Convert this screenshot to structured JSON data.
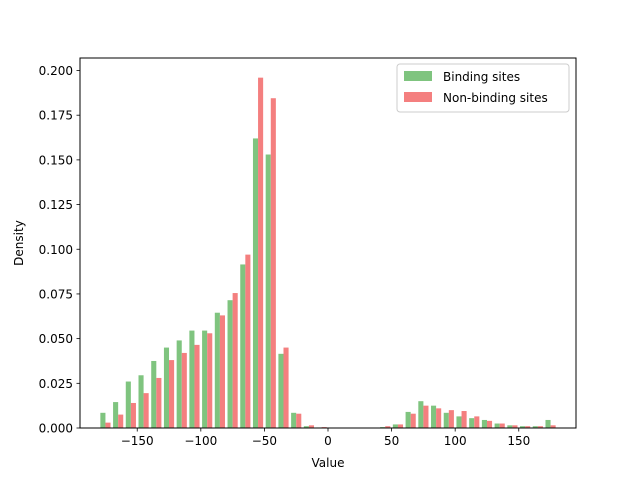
{
  "chart_data": {
    "type": "bar",
    "xlabel": "Value",
    "ylabel": "Density",
    "xlim": [
      -195,
      195
    ],
    "ylim": [
      0,
      0.207
    ],
    "x_ticks": [
      -150,
      -100,
      -50,
      0,
      50,
      100,
      150
    ],
    "x_tick_labels": [
      "−150",
      "−100",
      "−50",
      "0",
      "50",
      "100",
      "150"
    ],
    "y_ticks": [
      0,
      0.025,
      0.05,
      0.075,
      0.1,
      0.125,
      0.15,
      0.175,
      0.2
    ],
    "y_tick_labels": [
      "0.000",
      "0.025",
      "0.050",
      "0.075",
      "0.100",
      "0.125",
      "0.150",
      "0.175",
      "0.200"
    ],
    "grid": false,
    "legend_position": "top-right",
    "bin_width": 10,
    "bin_centers": [
      -175,
      -165,
      -155,
      -145,
      -135,
      -125,
      -115,
      -105,
      -95,
      -85,
      -75,
      -65,
      -55,
      -45,
      -35,
      -25,
      -15,
      -5,
      5,
      15,
      25,
      35,
      45,
      55,
      65,
      75,
      85,
      95,
      105,
      115,
      125,
      135,
      145,
      155,
      165,
      175
    ],
    "series": [
      {
        "name": "Binding sites",
        "color": "#7fc47f",
        "values": [
          0.0085,
          0.0145,
          0.026,
          0.0295,
          0.0375,
          0.045,
          0.049,
          0.0545,
          0.0545,
          0.0645,
          0.0715,
          0.0915,
          0.162,
          0.153,
          0.0415,
          0.0085,
          0.001,
          0.0003,
          0,
          0,
          0,
          0,
          0.0005,
          0.002,
          0.009,
          0.015,
          0.0125,
          0.0085,
          0.0065,
          0.0055,
          0.0045,
          0.0025,
          0.0015,
          0.001,
          0.001,
          0.0045
        ]
      },
      {
        "name": "Non-binding sites",
        "color": "#f47f7f",
        "values": [
          0.003,
          0.0075,
          0.014,
          0.0195,
          0.028,
          0.038,
          0.042,
          0.0465,
          0.053,
          0.063,
          0.0755,
          0.097,
          0.196,
          0.1845,
          0.045,
          0.008,
          0.0015,
          0.0005,
          0,
          0,
          0,
          0,
          0.001,
          0.002,
          0.008,
          0.0125,
          0.011,
          0.01,
          0.0095,
          0.0065,
          0.004,
          0.0025,
          0.0015,
          0.001,
          0.001,
          0.0015
        ]
      }
    ]
  }
}
